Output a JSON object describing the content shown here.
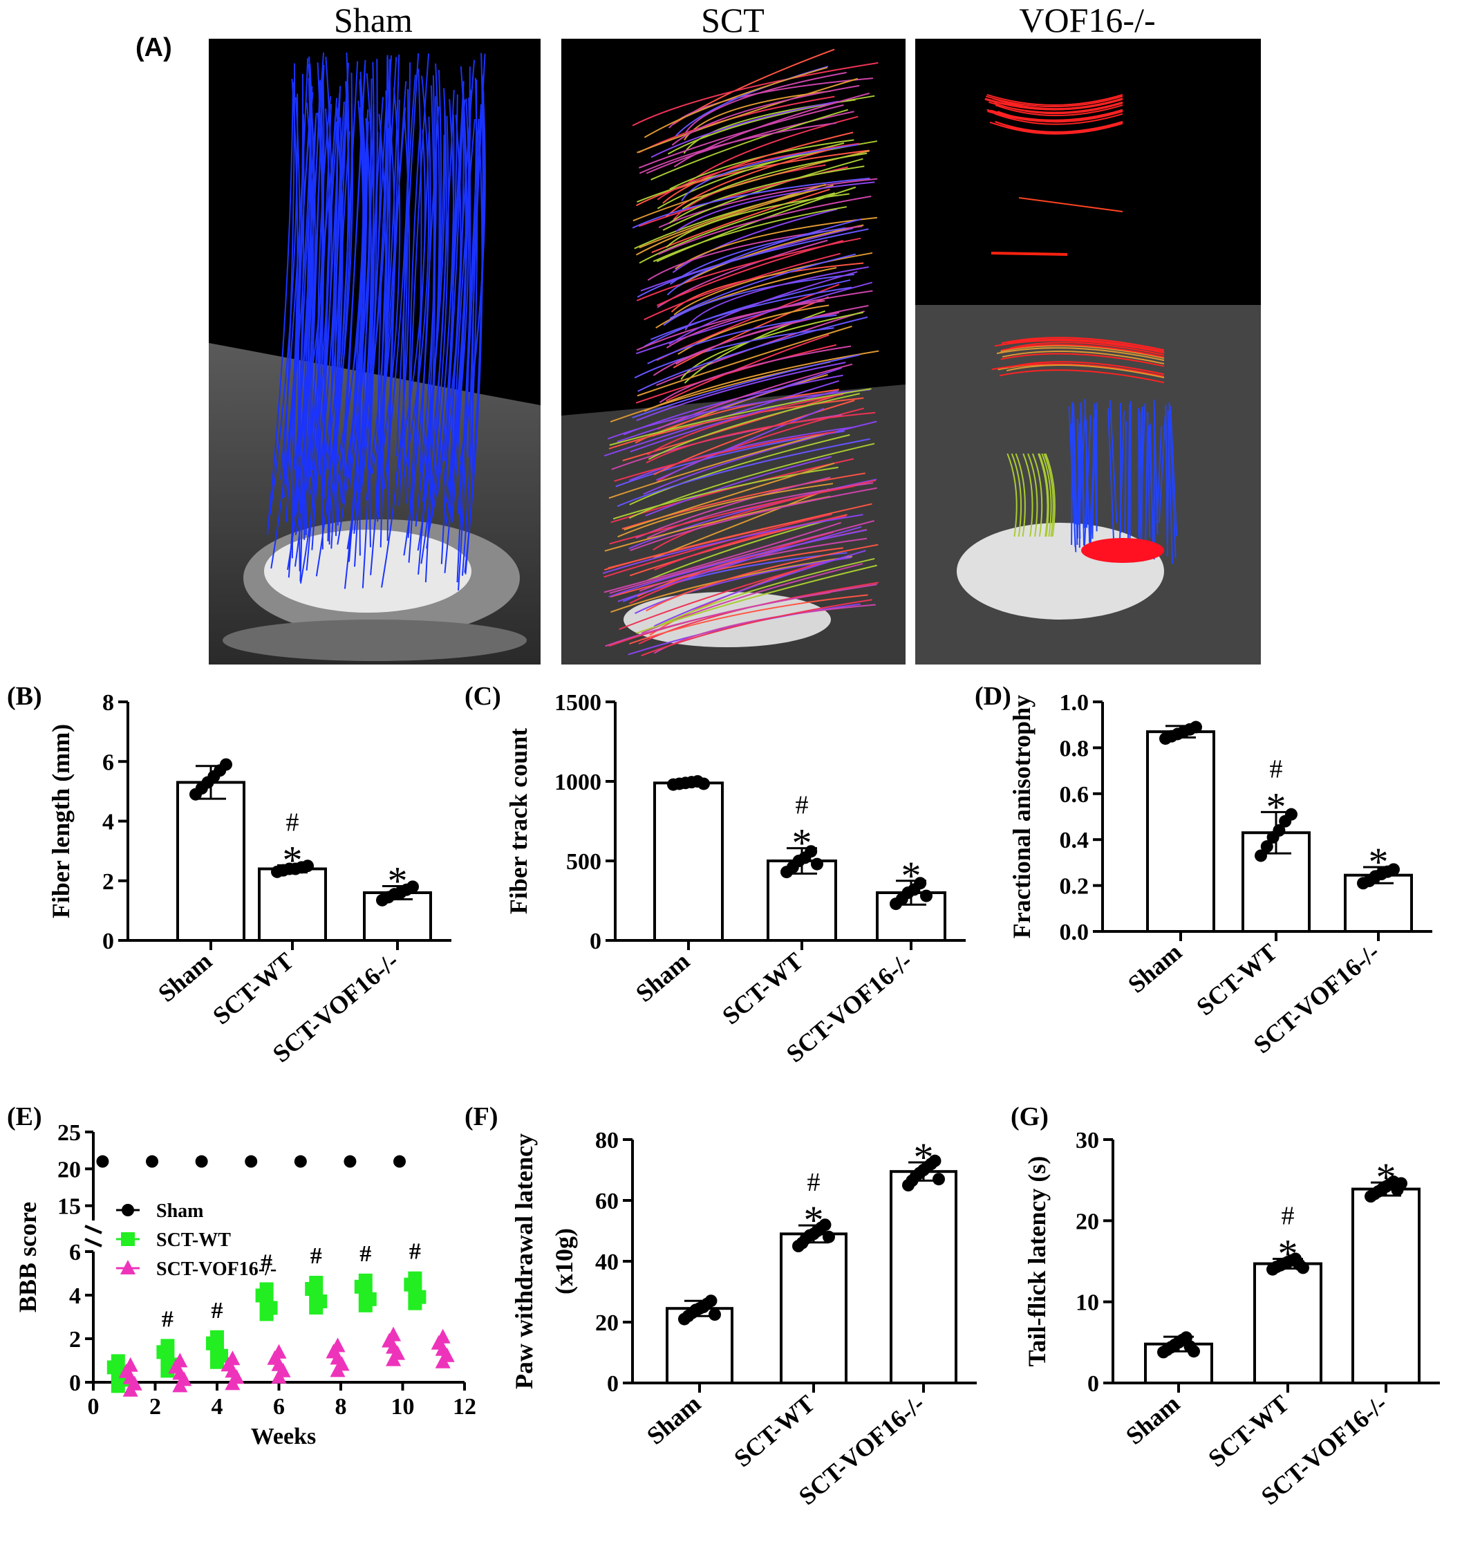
{
  "panelA": {
    "letter": "(A)",
    "titles": [
      "Sham",
      "SCT",
      "VOF16-/-"
    ]
  },
  "chart_data": [
    {
      "id": "B",
      "letter": "(B)",
      "type": "bar",
      "ylabel": "Fiber length (mm)",
      "categories": [
        "Sham",
        "SCT-WT",
        "SCT-VOF16-/-"
      ],
      "values": [
        5.3,
        2.4,
        1.6
      ],
      "errors": [
        0.55,
        0.12,
        0.22
      ],
      "points": [
        [
          4.9,
          5.1,
          5.3,
          5.5,
          5.7,
          5.9
        ],
        [
          2.3,
          2.35,
          2.4,
          2.4,
          2.45,
          2.5
        ],
        [
          1.35,
          1.45,
          1.55,
          1.6,
          1.7,
          1.8
        ]
      ],
      "ylim": [
        0,
        8
      ],
      "yticks": [
        0,
        2,
        4,
        6,
        8
      ],
      "annotations": [
        [],
        [
          "#",
          "*"
        ],
        [
          "*"
        ]
      ]
    },
    {
      "id": "C",
      "letter": "(C)",
      "type": "bar",
      "ylabel": "Fiber track count",
      "categories": [
        "Sham",
        "SCT-WT",
        "SCT-VOF16-/-"
      ],
      "values": [
        990,
        500,
        300
      ],
      "errors": [
        10,
        80,
        75
      ],
      "points": [
        [
          980,
          985,
          990,
          995,
          1000,
          985
        ],
        [
          430,
          460,
          500,
          520,
          560,
          480
        ],
        [
          230,
          260,
          300,
          320,
          360,
          280
        ]
      ],
      "ylim": [
        0,
        1500
      ],
      "yticks": [
        0,
        500,
        1000,
        1500
      ],
      "annotations": [
        [],
        [
          "#",
          "*"
        ],
        [
          "*"
        ]
      ]
    },
    {
      "id": "D",
      "letter": "(D)",
      "type": "bar",
      "ylabel": "Fractional anisotrophy",
      "categories": [
        "Sham",
        "SCT-WT",
        "SCT-VOF16-/-"
      ],
      "values": [
        0.87,
        0.43,
        0.245
      ],
      "errors": [
        0.025,
        0.09,
        0.035
      ],
      "points": [
        [
          0.84,
          0.85,
          0.86,
          0.87,
          0.88,
          0.89
        ],
        [
          0.33,
          0.37,
          0.41,
          0.44,
          0.48,
          0.51
        ],
        [
          0.21,
          0.22,
          0.24,
          0.25,
          0.26,
          0.27
        ]
      ],
      "ylim": [
        0,
        1.0
      ],
      "yticks": [
        0.0,
        0.2,
        0.4,
        0.6,
        0.8,
        1.0
      ],
      "tick_format": 1,
      "annotations": [
        [],
        [
          "#",
          "*"
        ],
        [
          "*"
        ]
      ]
    },
    {
      "id": "E",
      "letter": "(E)",
      "type": "scatter",
      "ylabel": "BBB score",
      "xlabel": "Weeks",
      "xlim": [
        0,
        12
      ],
      "xticks": [
        0,
        2,
        4,
        6,
        8,
        10,
        12
      ],
      "lower_ylim": [
        0,
        6
      ],
      "lower_yticks": [
        0,
        2,
        4,
        6
      ],
      "upper_ylim": [
        13,
        25
      ],
      "upper_yticks": [
        15,
        20,
        25
      ],
      "legend_position": "middle-left",
      "series": [
        {
          "name": "Sham",
          "color": "#000000",
          "marker": "circle",
          "x": [
            0.3,
            1.9,
            3.5,
            5.1,
            6.7,
            8.3,
            9.9
          ],
          "y": [
            21,
            21,
            21,
            21,
            21,
            21,
            21
          ]
        },
        {
          "name": "SCT-WT",
          "color": "#22ee22",
          "marker": "square",
          "x": [
            0.8,
            2.4,
            4.0,
            5.6,
            7.2,
            8.8,
            10.4
          ],
          "y": [
            0.4,
            1.1,
            1.5,
            3.7,
            4.0,
            4.1,
            4.2
          ]
        },
        {
          "name": "SCT-VOF16-/-",
          "color": "#ee33bb",
          "marker": "triangle",
          "x": [
            1.2,
            2.8,
            4.5,
            6.0,
            7.9,
            9.7,
            11.3
          ],
          "y": [
            0.2,
            0.4,
            0.5,
            0.8,
            1.1,
            1.6,
            1.5
          ]
        }
      ],
      "annotations": [
        {
          "x": 2.4,
          "text": "#"
        },
        {
          "x": 4.0,
          "text": "#"
        },
        {
          "x": 5.6,
          "text": "#"
        },
        {
          "x": 7.2,
          "text": "#"
        },
        {
          "x": 8.8,
          "text": "#"
        },
        {
          "x": 10.4,
          "text": "#"
        }
      ]
    },
    {
      "id": "F",
      "letter": "(F)",
      "type": "bar",
      "ylabel": "Paw withdrawal latency",
      "ylabel2": "(x10g)",
      "categories": [
        "Sham",
        "SCT-WT",
        "SCT-VOF16-/-"
      ],
      "values": [
        24.5,
        49,
        69.5
      ],
      "errors": [
        2.5,
        2.8,
        3.0
      ],
      "points": [
        [
          21,
          22,
          23,
          24,
          24.5,
          25,
          26,
          27,
          22.5
        ],
        [
          45,
          46,
          47.5,
          48.5,
          49,
          50,
          51,
          52,
          48
        ],
        [
          65,
          66.5,
          68,
          69,
          70,
          71,
          72,
          73,
          67
        ]
      ],
      "ylim": [
        0,
        80
      ],
      "yticks": [
        0,
        20,
        40,
        60,
        80
      ],
      "annotations": [
        [],
        [
          "#",
          "*"
        ],
        [
          "*"
        ]
      ]
    },
    {
      "id": "G",
      "letter": "(G)",
      "type": "bar",
      "ylabel": "Tail-flick latency (s)",
      "categories": [
        "Sham",
        "SCT-WT",
        "SCT-VOF16-/-"
      ],
      "values": [
        4.8,
        14.7,
        23.9
      ],
      "errors": [
        0.9,
        0.6,
        0.8
      ],
      "points": [
        [
          3.8,
          4.1,
          4.4,
          4.7,
          5.0,
          5.3,
          5.6,
          4.5,
          3.9
        ],
        [
          14.0,
          14.3,
          14.5,
          14.7,
          14.9,
          15.1,
          15.3,
          14.6,
          14.2
        ],
        [
          23.0,
          23.3,
          23.6,
          23.9,
          24.2,
          24.5,
          24.8,
          23.8,
          24.6
        ]
      ],
      "ylim": [
        0,
        30
      ],
      "yticks": [
        0,
        10,
        20,
        30
      ],
      "annotations": [
        [],
        [
          "#",
          "*"
        ],
        [
          "*"
        ]
      ]
    }
  ]
}
